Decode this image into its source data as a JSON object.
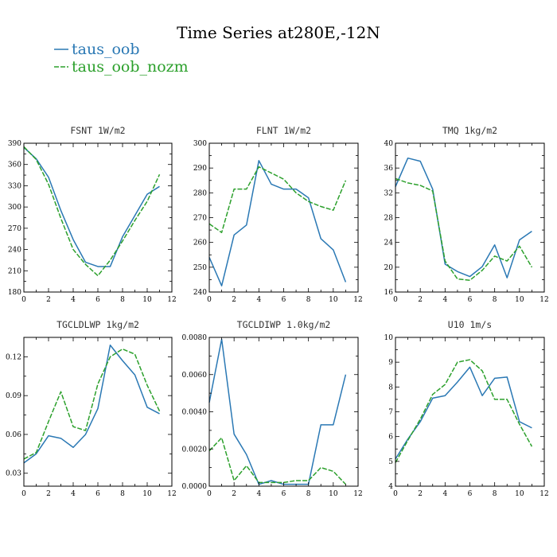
{
  "title": "Time Series at280E,-12N",
  "legend": [
    {
      "label": "taus_oob",
      "color": "#2a78b4",
      "dash": ""
    },
    {
      "label": "taus_oob_nozm",
      "color": "#2ca02c",
      "dash": "6,2"
    }
  ],
  "chart_data": [
    {
      "type": "line",
      "title": "FSNT  1W/m2",
      "x": [
        0,
        1,
        2,
        3,
        4,
        5,
        6,
        7,
        8,
        9,
        10,
        11
      ],
      "xlim": [
        0,
        12
      ],
      "xticks": [
        0,
        2,
        4,
        6,
        8,
        10,
        12
      ],
      "xtick_labels": [
        "0",
        "2",
        "4",
        "6",
        "8",
        "10",
        "12"
      ],
      "ylim": [
        180,
        390
      ],
      "yticks": [
        180,
        210,
        240,
        270,
        300,
        330,
        360,
        390
      ],
      "ytick_labels": [
        "180",
        "210",
        "240",
        "270",
        "300",
        "330",
        "360",
        "390"
      ],
      "series": [
        {
          "name": "taus_oob",
          "values": [
            384,
            368,
            342,
            295,
            254,
            222,
            216,
            216,
            258,
            288,
            318,
            329
          ]
        },
        {
          "name": "taus_oob_nozm",
          "values": [
            385,
            367,
            332,
            284,
            240,
            219,
            203,
            225,
            252,
            281,
            308,
            346
          ]
        }
      ]
    },
    {
      "type": "line",
      "title": "FLNT  1W/m2",
      "x": [
        0,
        1,
        2,
        3,
        4,
        5,
        6,
        7,
        8,
        9,
        10,
        11
      ],
      "xlim": [
        0,
        12
      ],
      "xticks": [
        0,
        2,
        4,
        6,
        8,
        10,
        12
      ],
      "xtick_labels": [
        "0",
        "2",
        "4",
        "6",
        "8",
        "10",
        "12"
      ],
      "ylim": [
        240,
        300
      ],
      "yticks": [
        240,
        250,
        260,
        270,
        280,
        290,
        300
      ],
      "ytick_labels": [
        "240",
        "250",
        "260",
        "270",
        "280",
        "290",
        "300"
      ],
      "series": [
        {
          "name": "taus_oob",
          "values": [
            254,
            242.5,
            263,
            267,
            293,
            283.5,
            281.5,
            281.5,
            278,
            261.5,
            257,
            244
          ]
        },
        {
          "name": "taus_oob_nozm",
          "values": [
            267.5,
            264,
            281.5,
            281.5,
            290.5,
            288,
            285.5,
            280,
            276.5,
            274.5,
            273,
            285
          ]
        }
      ]
    },
    {
      "type": "line",
      "title": "TMQ  1kg/m2",
      "x": [
        0,
        1,
        2,
        3,
        4,
        5,
        6,
        7,
        8,
        9,
        10,
        11
      ],
      "xlim": [
        0,
        12
      ],
      "xticks": [
        0,
        2,
        4,
        6,
        8,
        10,
        12
      ],
      "xtick_labels": [
        "0",
        "2",
        "4",
        "6",
        "8",
        "10",
        "12"
      ],
      "ylim": [
        16,
        40
      ],
      "yticks": [
        16,
        20,
        24,
        28,
        32,
        36,
        40
      ],
      "ytick_labels": [
        "16",
        "20",
        "24",
        "28",
        "32",
        "36",
        "40"
      ],
      "series": [
        {
          "name": "taus_oob",
          "values": [
            33,
            37.6,
            37.1,
            32.6,
            20.5,
            19.3,
            18.5,
            20.1,
            23.6,
            18.3,
            24.4,
            25.8
          ]
        },
        {
          "name": "taus_oob_nozm",
          "values": [
            34.3,
            33.6,
            33.2,
            32.3,
            21,
            18.1,
            17.9,
            19.5,
            21.8,
            21,
            23.4,
            20
          ]
        }
      ]
    },
    {
      "type": "line",
      "title": "TGCLDLWP  1kg/m2",
      "x": [
        0,
        1,
        2,
        3,
        4,
        5,
        6,
        7,
        8,
        9,
        10,
        11
      ],
      "xlim": [
        0,
        12
      ],
      "xticks": [
        0,
        2,
        4,
        6,
        8,
        10,
        12
      ],
      "xtick_labels": [
        "0",
        "2",
        "4",
        "6",
        "8",
        "10",
        "12"
      ],
      "ylim": [
        0.02,
        0.135
      ],
      "yticks": [
        0.03,
        0.06,
        0.09,
        0.12
      ],
      "ytick_labels": [
        "0.03",
        "0.06",
        "0.09",
        "0.12"
      ],
      "series": [
        {
          "name": "taus_oob",
          "values": [
            0.038,
            0.045,
            0.059,
            0.057,
            0.05,
            0.06,
            0.08,
            0.129,
            0.117,
            0.106,
            0.081,
            0.076
          ]
        },
        {
          "name": "taus_oob_nozm",
          "values": [
            0.041,
            0.046,
            0.07,
            0.093,
            0.066,
            0.063,
            0.099,
            0.12,
            0.126,
            0.122,
            0.098,
            0.078
          ]
        }
      ]
    },
    {
      "type": "line",
      "title": "TGCLDIWP  1.0kg/m2",
      "x": [
        0,
        1,
        2,
        3,
        4,
        5,
        6,
        7,
        8,
        9,
        10,
        11
      ],
      "xlim": [
        0,
        12
      ],
      "xticks": [
        0,
        2,
        4,
        6,
        8,
        10,
        12
      ],
      "xtick_labels": [
        "0",
        "2",
        "4",
        "6",
        "8",
        "10",
        "12"
      ],
      "ylim": [
        0,
        0.008
      ],
      "yticks": [
        0,
        0.002,
        0.004,
        0.006,
        0.008
      ],
      "ytick_labels": [
        "0.0000",
        "0.0020",
        "0.0040",
        "0.0060",
        "0.0080"
      ],
      "series": [
        {
          "name": "taus_oob",
          "values": [
            0.0045,
            0.0079,
            0.0028,
            0.0017,
            0.0001,
            0.0003,
            0.0001,
            0.0001,
            0.0001,
            0.0033,
            0.0033,
            0.006
          ]
        },
        {
          "name": "taus_oob_nozm",
          "values": [
            0.0019,
            0.0026,
            0.0003,
            0.0011,
            0.0002,
            0.0002,
            0.0002,
            0.0003,
            0.0003,
            0.001,
            0.0008,
            0.0001
          ]
        }
      ]
    },
    {
      "type": "line",
      "title": "U10  1m/s",
      "x": [
        0,
        1,
        2,
        3,
        4,
        5,
        6,
        7,
        8,
        9,
        10,
        11
      ],
      "xlim": [
        0,
        12
      ],
      "xticks": [
        0,
        2,
        4,
        6,
        8,
        10,
        12
      ],
      "xtick_labels": [
        "0",
        "2",
        "4",
        "6",
        "8",
        "10",
        "12"
      ],
      "ylim": [
        4,
        10
      ],
      "yticks": [
        4,
        5,
        6,
        7,
        8,
        9,
        10
      ],
      "ytick_labels": [
        "4",
        "5",
        "6",
        "7",
        "8",
        "9",
        "10"
      ],
      "series": [
        {
          "name": "taus_oob",
          "values": [
            5.1,
            5.9,
            6.6,
            7.55,
            7.65,
            8.2,
            8.8,
            7.65,
            8.35,
            8.4,
            6.6,
            6.35
          ]
        },
        {
          "name": "taus_oob_nozm",
          "values": [
            4.95,
            5.85,
            6.7,
            7.7,
            8.1,
            9.0,
            9.1,
            8.65,
            7.5,
            7.5,
            6.5,
            5.6
          ]
        }
      ]
    }
  ]
}
